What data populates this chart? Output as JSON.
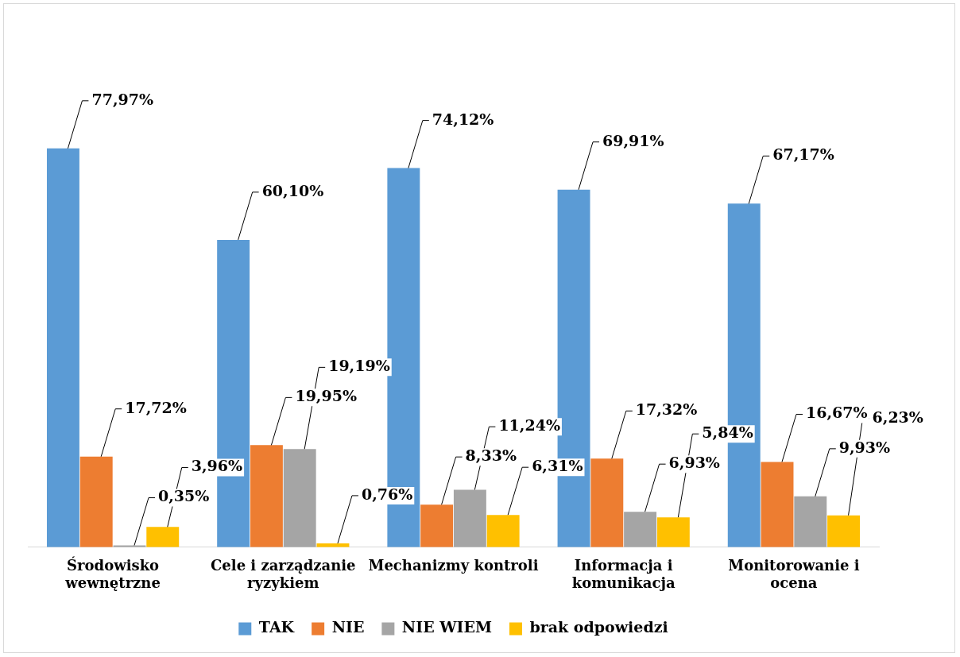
{
  "chart_data": {
    "type": "bar",
    "categories": [
      "Środowisko wewnętrzne",
      "Cele i zarządzanie ryzykiem",
      "Mechanizmy kontroli",
      "Informacja i komunikacja",
      "Monitorowanie i ocena"
    ],
    "series": [
      {
        "name": "TAK",
        "color": "#5b9bd5",
        "values": [
          77.97,
          60.1,
          74.12,
          69.91,
          67.17
        ],
        "value_labels": [
          "77,97%",
          "60,10%",
          "74,12%",
          "69,91%",
          "67,17%"
        ]
      },
      {
        "name": "NIE",
        "color": "#ed7d31",
        "values": [
          17.72,
          19.95,
          8.33,
          17.32,
          16.67
        ],
        "value_labels": [
          "17,72%",
          "19,95%",
          "8,33%",
          "17,32%",
          "16,67%"
        ]
      },
      {
        "name": "NIE WIEM",
        "color": "#a5a5a5",
        "values": [
          0.35,
          19.19,
          11.24,
          6.93,
          9.93
        ],
        "value_labels": [
          "0,35%",
          "19,19%",
          "11,24%",
          "6,93%",
          "9,93%"
        ]
      },
      {
        "name": "brak odpowiedzi",
        "color": "#ffc000",
        "values": [
          3.96,
          0.76,
          6.31,
          5.84,
          6.23
        ],
        "value_labels": [
          "3,96%",
          "0,76%",
          "6,31%",
          "5,84%",
          "6,23%"
        ]
      }
    ],
    "legend": "bottom",
    "grid": false
  }
}
